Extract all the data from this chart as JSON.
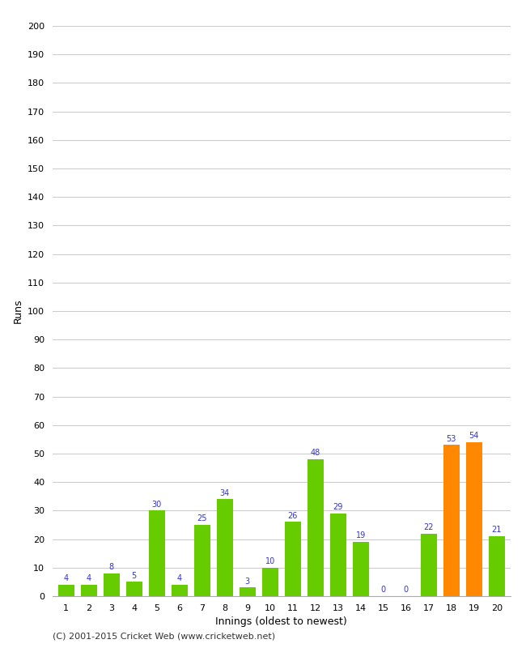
{
  "xlabel": "Innings (oldest to newest)",
  "ylabel": "Runs",
  "values": [
    4,
    4,
    8,
    5,
    30,
    4,
    25,
    34,
    3,
    10,
    26,
    48,
    29,
    19,
    0,
    0,
    22,
    53,
    54,
    21
  ],
  "categories": [
    "1",
    "2",
    "3",
    "4",
    "5",
    "6",
    "7",
    "8",
    "9",
    "10",
    "11",
    "12",
    "13",
    "14",
    "15",
    "16",
    "17",
    "18",
    "19",
    "20"
  ],
  "bar_colors": [
    "#66cc00",
    "#66cc00",
    "#66cc00",
    "#66cc00",
    "#66cc00",
    "#66cc00",
    "#66cc00",
    "#66cc00",
    "#66cc00",
    "#66cc00",
    "#66cc00",
    "#66cc00",
    "#66cc00",
    "#66cc00",
    "#66cc00",
    "#66cc00",
    "#66cc00",
    "#ff8800",
    "#ff8800",
    "#66cc00"
  ],
  "ylim": [
    0,
    200
  ],
  "yticks": [
    0,
    10,
    20,
    30,
    40,
    50,
    60,
    70,
    80,
    90,
    100,
    110,
    120,
    130,
    140,
    150,
    160,
    170,
    180,
    190,
    200
  ],
  "label_color": "#3333cc",
  "background_color": "#ffffff",
  "grid_color": "#cccccc",
  "footer": "(C) 2001-2015 Cricket Web (www.cricketweb.net)"
}
